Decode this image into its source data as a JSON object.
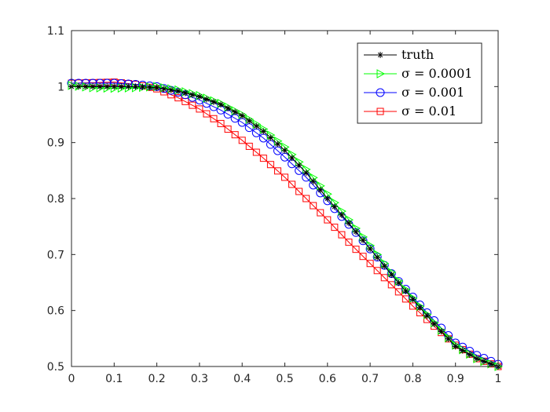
{
  "chart_data": {
    "type": "line",
    "title": "",
    "xlabel": "",
    "ylabel": "",
    "xlim": [
      0,
      1
    ],
    "ylim": [
      0.5,
      1.1
    ],
    "xticks": [
      0,
      0.1,
      0.2,
      0.3,
      0.4,
      0.5,
      0.6,
      0.7,
      0.8,
      0.9,
      1
    ],
    "xtick_labels": [
      "0",
      "0.1",
      "0.2",
      "0.3",
      "0.4",
      "0.5",
      "0.6",
      "0.7",
      "0.8",
      "0.9",
      "1"
    ],
    "yticks": [
      0.5,
      0.6,
      0.7,
      0.8,
      0.9,
      1,
      1.1
    ],
    "ytick_labels": [
      "0.5",
      "0.6",
      "0.7",
      "0.8",
      "0.9",
      "1",
      "1.1"
    ],
    "grid": false,
    "legend_position": "top-right",
    "legend": [
      {
        "label": "truth",
        "color": "#000000",
        "marker": "star"
      },
      {
        "label": "σ = 0.0001",
        "color": "#00ff00",
        "marker": "triangle-right"
      },
      {
        "label": "σ = 0.001",
        "color": "#0000ff",
        "marker": "circle"
      },
      {
        "label": "σ = 0.01",
        "color": "#ff0000",
        "marker": "square"
      }
    ],
    "series": [
      {
        "name": "truth",
        "color": "#000000",
        "marker": "star",
        "x": [
          0,
          0.05,
          0.1,
          0.15,
          0.2,
          0.25,
          0.3,
          0.35,
          0.4,
          0.45,
          0.5,
          0.55,
          0.6,
          0.65,
          0.7,
          0.75,
          0.8,
          0.85,
          0.9,
          0.95,
          1
        ],
        "y": [
          1.0,
          1.0,
          1.0,
          1.0,
          0.998,
          0.992,
          0.982,
          0.968,
          0.948,
          0.92,
          0.886,
          0.846,
          0.8,
          0.756,
          0.71,
          0.664,
          0.62,
          0.576,
          0.536,
          0.514,
          0.5
        ]
      },
      {
        "name": "σ = 0.0001",
        "color": "#00ff00",
        "marker": "triangle-right",
        "x": [
          0,
          0.05,
          0.1,
          0.15,
          0.2,
          0.25,
          0.3,
          0.35,
          0.4,
          0.45,
          0.5,
          0.55,
          0.6,
          0.65,
          0.7,
          0.75,
          0.8,
          0.85,
          0.9,
          0.95,
          1
        ],
        "y": [
          1.002,
          0.998,
          0.997,
          0.998,
          1.0,
          0.994,
          0.984,
          0.97,
          0.95,
          0.924,
          0.892,
          0.852,
          0.808,
          0.762,
          0.716,
          0.668,
          0.622,
          0.578,
          0.538,
          0.514,
          0.5
        ]
      },
      {
        "name": "σ = 0.001",
        "color": "#0000ff",
        "marker": "circle",
        "x": [
          0,
          0.05,
          0.1,
          0.15,
          0.2,
          0.25,
          0.3,
          0.35,
          0.4,
          0.45,
          0.5,
          0.55,
          0.6,
          0.65,
          0.7,
          0.75,
          0.8,
          0.85,
          0.9,
          0.95,
          1
        ],
        "y": [
          1.006,
          1.006,
          1.006,
          1.004,
          1.0,
          0.99,
          0.976,
          0.958,
          0.936,
          0.908,
          0.874,
          0.838,
          0.796,
          0.754,
          0.71,
          0.666,
          0.624,
          0.582,
          0.542,
          0.52,
          0.504
        ]
      },
      {
        "name": "σ = 0.01",
        "color": "#ff0000",
        "marker": "square",
        "x": [
          0,
          0.05,
          0.1,
          0.15,
          0.2,
          0.25,
          0.3,
          0.35,
          0.4,
          0.45,
          0.5,
          0.55,
          0.6,
          0.65,
          0.7,
          0.75,
          0.8,
          0.85,
          0.9,
          0.95,
          1
        ],
        "y": [
          1.006,
          1.007,
          1.008,
          1.004,
          0.996,
          0.98,
          0.96,
          0.934,
          0.904,
          0.872,
          0.838,
          0.8,
          0.762,
          0.722,
          0.684,
          0.646,
          0.608,
          0.572,
          0.538,
          0.514,
          0.5
        ]
      }
    ]
  }
}
